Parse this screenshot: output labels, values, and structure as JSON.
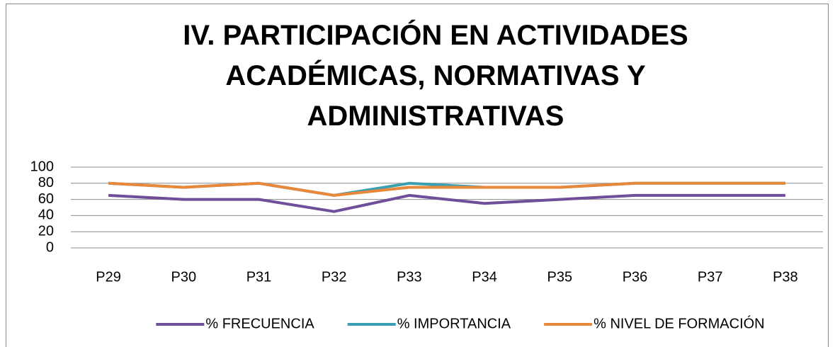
{
  "chart_data": {
    "type": "line",
    "title": "IV. PARTICIPACIÓN EN ACTIVIDADES ACADÉMICAS, NORMATIVAS Y ADMINISTRATIVAS",
    "categories": [
      "P29",
      "P30",
      "P31",
      "P32",
      "P33",
      "P34",
      "P35",
      "P36",
      "P37",
      "P38"
    ],
    "series": [
      {
        "name": "% FRECUENCIA",
        "color": "#6f4f9a",
        "values": [
          65,
          60,
          60,
          45,
          65,
          55,
          60,
          65,
          65,
          65
        ]
      },
      {
        "name": "% IMPORTANCIA",
        "color": "#3a9fb0",
        "values": [
          80,
          75,
          80,
          65,
          80,
          75,
          75,
          80,
          80,
          80
        ]
      },
      {
        "name": "% NIVEL DE FORMACIÓN",
        "color": "#e8883a",
        "values": [
          80,
          75,
          80,
          65,
          75,
          75,
          75,
          80,
          80,
          80
        ]
      }
    ],
    "ylim": [
      0,
      100
    ],
    "yticks": [
      0,
      20,
      40,
      60,
      80,
      100
    ],
    "grid": true,
    "legend": "bottom"
  }
}
